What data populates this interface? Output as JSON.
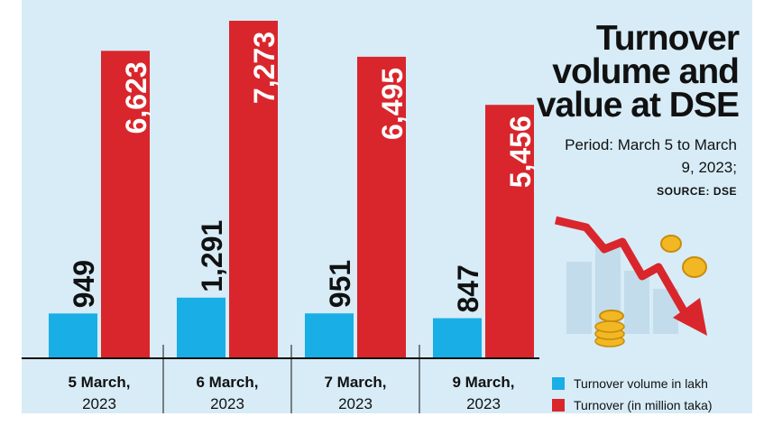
{
  "title": "Turnover volume and value at DSE",
  "subtitle": "Period: March 5 to March 9, 2023;",
  "source": "SOURCE: DSE",
  "colors": {
    "volume": "#1aaee6",
    "value": "#d9262c",
    "panel": "#d7ecf7"
  },
  "chart_data": {
    "type": "bar",
    "categories": [
      {
        "line1": "5 March,",
        "line2": "2023"
      },
      {
        "line1": "6 March,",
        "line2": "2023"
      },
      {
        "line1": "7 March,",
        "line2": "2023"
      },
      {
        "line1": "9 March,",
        "line2": "2023"
      }
    ],
    "series": [
      {
        "name": "Turnover volume in lakh",
        "values": [
          949,
          1291,
          951,
          847
        ],
        "labels": [
          "949",
          "1,291",
          "951",
          "847"
        ]
      },
      {
        "name": "Turnover (in million taka)",
        "values": [
          6623,
          7273,
          6495,
          5456
        ],
        "labels": [
          "6,623",
          "7,273",
          "6,495",
          "5,456"
        ]
      }
    ],
    "legend_position": "bottom-right"
  }
}
